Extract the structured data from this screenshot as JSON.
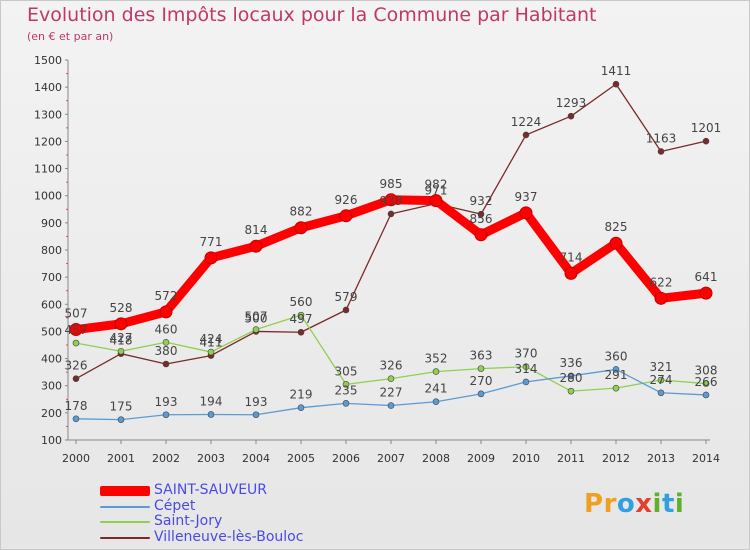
{
  "title": "Evolution des Impôts locaux pour la Commune par Habitant",
  "subtitle": "(en € et par an)",
  "logo": "Proxiti",
  "chart_data": {
    "type": "line",
    "x": [
      "2000",
      "2001",
      "2002",
      "2003",
      "2004",
      "2005",
      "2006",
      "2007",
      "2008",
      "2009",
      "2010",
      "2011",
      "2012",
      "2013",
      "2014"
    ],
    "ylim": [
      100,
      1500
    ],
    "yticks": [
      100,
      200,
      300,
      400,
      500,
      600,
      700,
      800,
      900,
      1000,
      1100,
      1200,
      1300,
      1400,
      1500
    ],
    "grid": false,
    "legend_position": "bottom-left",
    "series": [
      {
        "name": "SAINT-SAUVEUR",
        "color": "#ff0000",
        "values": [
          507,
          528,
          572,
          771,
          814,
          882,
          926,
          985,
          982,
          856,
          937,
          714,
          825,
          622,
          641
        ]
      },
      {
        "name": "Cépet",
        "color": "#5b9bd5",
        "values": [
          178,
          175,
          193,
          194,
          193,
          219,
          235,
          227,
          241,
          270,
          314,
          336,
          360,
          274,
          266
        ]
      },
      {
        "name": "Saint-Jory",
        "color": "#90d050",
        "values": [
          457,
          427,
          460,
          424,
          507,
          560,
          305,
          326,
          352,
          363,
          370,
          280,
          291,
          321,
          308
        ]
      },
      {
        "name": "Villeneuve-lès-Bouloc",
        "color": "#7a2a2a",
        "values": [
          326,
          418,
          380,
          411,
          500,
          497,
          579,
          933,
          971,
          932,
          1224,
          1293,
          1411,
          1163,
          1201
        ]
      }
    ]
  }
}
